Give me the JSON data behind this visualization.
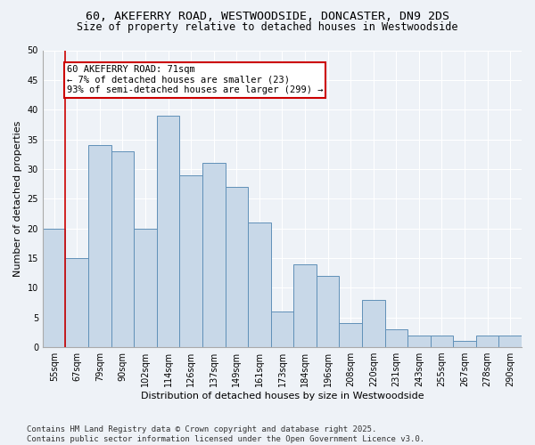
{
  "title": "60, AKEFERRY ROAD, WESTWOODSIDE, DONCASTER, DN9 2DS",
  "subtitle": "Size of property relative to detached houses in Westwoodside",
  "xlabel": "Distribution of detached houses by size in Westwoodside",
  "ylabel": "Number of detached properties",
  "bar_color": "#c8d8e8",
  "bar_edge_color": "#6090b8",
  "categories": [
    "55sqm",
    "67sqm",
    "79sqm",
    "90sqm",
    "102sqm",
    "114sqm",
    "126sqm",
    "137sqm",
    "149sqm",
    "161sqm",
    "173sqm",
    "184sqm",
    "196sqm",
    "208sqm",
    "220sqm",
    "231sqm",
    "243sqm",
    "255sqm",
    "267sqm",
    "278sqm",
    "290sqm"
  ],
  "values": [
    20,
    15,
    34,
    33,
    20,
    39,
    29,
    31,
    27,
    21,
    6,
    14,
    12,
    4,
    8,
    3,
    2,
    2,
    1,
    2,
    2
  ],
  "ylim": [
    0,
    50
  ],
  "yticks": [
    0,
    5,
    10,
    15,
    20,
    25,
    30,
    35,
    40,
    45,
    50
  ],
  "annotation_text": "60 AKEFERRY ROAD: 71sqm\n← 7% of detached houses are smaller (23)\n93% of semi-detached houses are larger (299) →",
  "annotation_box_color": "#ffffff",
  "annotation_box_edge": "#cc0000",
  "property_line_color": "#cc0000",
  "background_color": "#eef2f7",
  "grid_color": "#ffffff",
  "footer": "Contains HM Land Registry data © Crown copyright and database right 2025.\nContains public sector information licensed under the Open Government Licence v3.0.",
  "title_fontsize": 9.5,
  "subtitle_fontsize": 8.5,
  "xlabel_fontsize": 8,
  "ylabel_fontsize": 8,
  "tick_fontsize": 7,
  "annotation_fontsize": 7.5,
  "footer_fontsize": 6.5
}
